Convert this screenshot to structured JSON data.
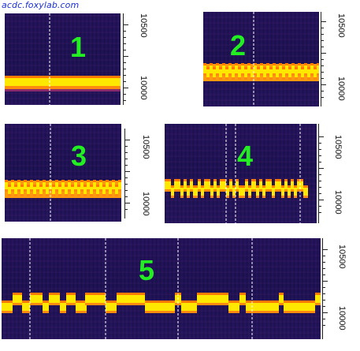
{
  "watermark": "acdc.foxylab.com",
  "colors": {
    "background": "#1e1358",
    "signal_core": "#fff200",
    "signal_edge": "#ff8a00",
    "panel_number": "#22ee22",
    "marker": "#ffffff"
  },
  "axis_labels": {
    "upper": "10500",
    "lower": "10000"
  },
  "panels": [
    {
      "number": "1",
      "description_keys": [
        "steady carrier"
      ]
    },
    {
      "number": "2"
    },
    {
      "number": "3"
    },
    {
      "number": "4"
    },
    {
      "number": "5"
    }
  ]
}
